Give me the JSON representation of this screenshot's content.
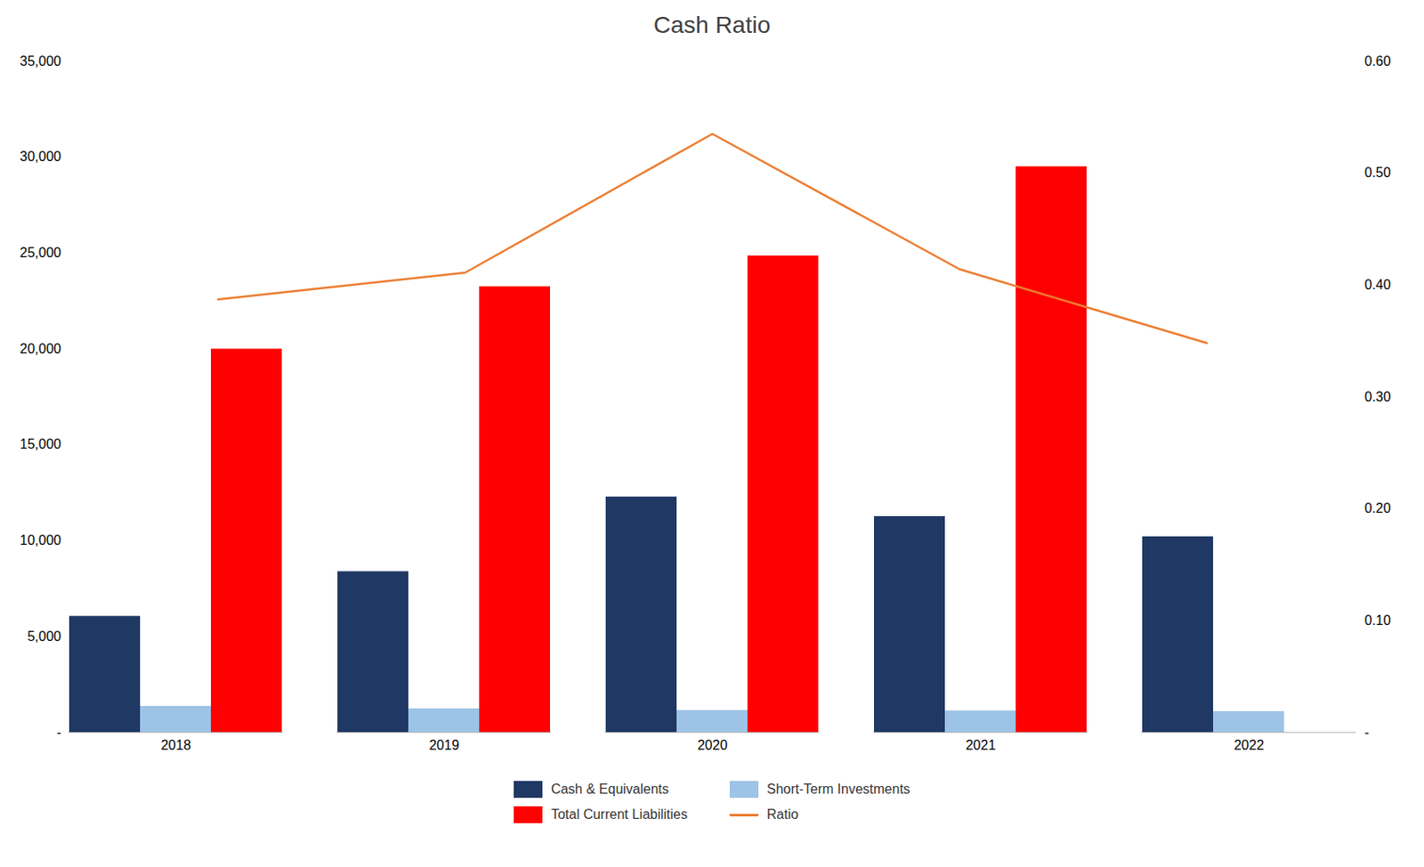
{
  "chart_data": {
    "type": "bar",
    "title": "Cash Ratio",
    "categories": [
      "2018",
      "2019",
      "2020",
      "2021",
      "2022"
    ],
    "series": [
      {
        "name": "Cash & Equivalents",
        "color": "#1F3864",
        "type": "bar",
        "values": [
          6055,
          8384,
          12277,
          11258,
          10203
        ]
      },
      {
        "name": "Short-Term Investments",
        "color": "#9DC3E6",
        "type": "bar",
        "values": [
          1364,
          1234,
          1147,
          1126,
          1090
        ]
      },
      {
        "name": "Total Current Liabilities",
        "color": "#FF0000",
        "type": "bar",
        "values": [
          19986,
          23237,
          24844,
          29493,
          0
        ]
      },
      {
        "name": "Ratio",
        "color": "#ED7D31",
        "type": "line",
        "axis": "y2",
        "values": [
          0.387,
          0.411,
          0.535,
          0.414,
          0.348
        ]
      }
    ],
    "ylim": [
      0,
      35000
    ],
    "yticks": [
      {
        "value": 0,
        "label": "-"
      },
      {
        "value": 5000,
        "label": "5,000"
      },
      {
        "value": 10000,
        "label": "10,000"
      },
      {
        "value": 15000,
        "label": "15,000"
      },
      {
        "value": 20000,
        "label": "20,000"
      },
      {
        "value": 25000,
        "label": "25,000"
      },
      {
        "value": 30000,
        "label": "30,000"
      },
      {
        "value": 35000,
        "label": "35,000"
      }
    ],
    "y2lim": [
      0,
      0.6
    ],
    "y2ticks": [
      {
        "value": 0,
        "label": "-"
      },
      {
        "value": 0.1,
        "label": "0.10"
      },
      {
        "value": 0.2,
        "label": "0.20"
      },
      {
        "value": 0.3,
        "label": "0.30"
      },
      {
        "value": 0.4,
        "label": "0.40"
      },
      {
        "value": 0.5,
        "label": "0.50"
      },
      {
        "value": 0.6,
        "label": "0.60"
      }
    ],
    "grid": false,
    "legend": "bottom"
  }
}
